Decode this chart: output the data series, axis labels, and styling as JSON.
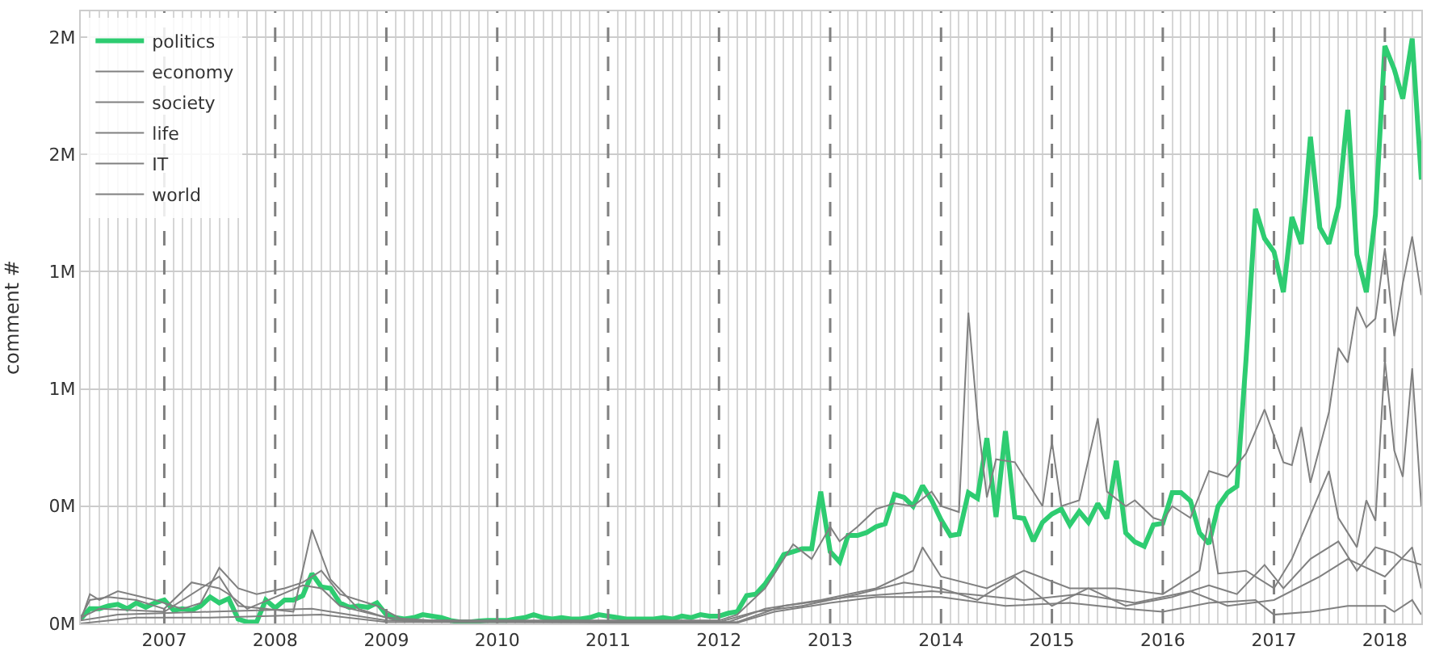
{
  "chart_data": {
    "type": "line",
    "ylabel": "comment #",
    "xlim": [
      "2006-04-01",
      "2018-05-01"
    ],
    "ylim": [
      0,
      2.088
    ],
    "xticks": [
      {
        "value": "2007-01-01",
        "label": "2007"
      },
      {
        "value": "2008-01-01",
        "label": "2008"
      },
      {
        "value": "2009-01-01",
        "label": "2009"
      },
      {
        "value": "2010-01-01",
        "label": "2010"
      },
      {
        "value": "2011-01-01",
        "label": "2011"
      },
      {
        "value": "2012-01-01",
        "label": "2012"
      },
      {
        "value": "2013-01-01",
        "label": "2013"
      },
      {
        "value": "2014-01-01",
        "label": "2014"
      },
      {
        "value": "2015-01-01",
        "label": "2015"
      },
      {
        "value": "2016-01-01",
        "label": "2016"
      },
      {
        "value": "2017-01-01",
        "label": "2017"
      },
      {
        "value": "2018-01-01",
        "label": "2018"
      }
    ],
    "yticks": [
      {
        "value": 0,
        "label": "0M"
      },
      {
        "value": 0.4,
        "label": "0M"
      },
      {
        "value": 0.8,
        "label": "1M"
      },
      {
        "value": 1.2,
        "label": "1M"
      },
      {
        "value": 1.6,
        "label": "2M"
      },
      {
        "value": 2.0,
        "label": "2M"
      }
    ],
    "grid": true,
    "legend": "top left",
    "marker": "none",
    "line_style": "solid",
    "ref_lines": [
      {
        "axis": "x",
        "value": "2007-01-01",
        "color": "#808080",
        "line_style": "dashed"
      },
      {
        "axis": "x",
        "value": "2008-01-01",
        "color": "#808080",
        "line_style": "dashed"
      },
      {
        "axis": "x",
        "value": "2009-01-01",
        "color": "#808080",
        "line_style": "dashed"
      },
      {
        "axis": "x",
        "value": "2010-01-01",
        "color": "#808080",
        "line_style": "dashed"
      },
      {
        "axis": "x",
        "value": "2011-01-01",
        "color": "#808080",
        "line_style": "dashed"
      },
      {
        "axis": "x",
        "value": "2012-01-01",
        "color": "#808080",
        "line_style": "dashed"
      },
      {
        "axis": "x",
        "value": "2013-01-01",
        "color": "#808080",
        "line_style": "dashed"
      },
      {
        "axis": "x",
        "value": "2014-01-01",
        "color": "#808080",
        "line_style": "dashed"
      },
      {
        "axis": "x",
        "value": "2015-01-01",
        "color": "#808080",
        "line_style": "dashed"
      },
      {
        "axis": "x",
        "value": "2016-01-01",
        "color": "#808080",
        "line_style": "dashed"
      },
      {
        "axis": "x",
        "value": "2017-01-01",
        "color": "#808080",
        "line_style": "dashed"
      },
      {
        "axis": "x",
        "value": "2018-01-01",
        "color": "#808080",
        "line_style": "dashed"
      }
    ],
    "series": [
      {
        "name": "politics",
        "color": "#2ecc71",
        "x": [
          "2006-04",
          "2006-05",
          "2006-06",
          "2006-07",
          "2006-08",
          "2006-09",
          "2006-10",
          "2006-11",
          "2006-12",
          "2007-01",
          "2007-02",
          "2007-03",
          "2007-04",
          "2007-05",
          "2007-06",
          "2007-07",
          "2007-08",
          "2007-09",
          "2007-10",
          "2007-11",
          "2007-12",
          "2008-01",
          "2008-02",
          "2008-03",
          "2008-04",
          "2008-05",
          "2008-06",
          "2008-07",
          "2008-08",
          "2008-09",
          "2008-10",
          "2008-11",
          "2008-12",
          "2009-01",
          "2009-02",
          "2009-03",
          "2009-04",
          "2009-05",
          "2009-06",
          "2009-07",
          "2009-08",
          "2009-09",
          "2009-10",
          "2009-11",
          "2009-12",
          "2010-01",
          "2010-02",
          "2010-03",
          "2010-04",
          "2010-05",
          "2010-06",
          "2010-07",
          "2010-08",
          "2010-09",
          "2010-10",
          "2010-11",
          "2010-12",
          "2011-01",
          "2011-02",
          "2011-03",
          "2011-04",
          "2011-05",
          "2011-06",
          "2011-07",
          "2011-08",
          "2011-09",
          "2011-10",
          "2011-11",
          "2011-12",
          "2012-01",
          "2012-02",
          "2012-03",
          "2012-04",
          "2012-05",
          "2012-06",
          "2012-07",
          "2012-08",
          "2012-09",
          "2012-10",
          "2012-11",
          "2012-12",
          "2013-01",
          "2013-02",
          "2013-03",
          "2013-04",
          "2013-05",
          "2013-06",
          "2013-07",
          "2013-08",
          "2013-09",
          "2013-10",
          "2013-11",
          "2013-12",
          "2014-01",
          "2014-02",
          "2014-03",
          "2014-04",
          "2014-05",
          "2014-06",
          "2014-07",
          "2014-08",
          "2014-09",
          "2014-10",
          "2014-11",
          "2014-12",
          "2015-01",
          "2015-02",
          "2015-03",
          "2015-04",
          "2015-05",
          "2015-06",
          "2015-07",
          "2015-08",
          "2015-09",
          "2015-10",
          "2015-11",
          "2015-12",
          "2016-01",
          "2016-02",
          "2016-03",
          "2016-04",
          "2016-05",
          "2016-06",
          "2016-07",
          "2016-08",
          "2016-09",
          "2016-10",
          "2016-11",
          "2016-12",
          "2017-01",
          "2017-02",
          "2017-03",
          "2017-04",
          "2017-05",
          "2017-06",
          "2017-07",
          "2017-08",
          "2017-09",
          "2017-10",
          "2017-11",
          "2017-12",
          "2018-01",
          "2018-02",
          "2018-03",
          "2018-04",
          "2018-05"
        ],
        "values": [
          0.016,
          0.05,
          0.05,
          0.06,
          0.065,
          0.05,
          0.07,
          0.055,
          0.07,
          0.08,
          0.045,
          0.05,
          0.045,
          0.06,
          0.09,
          0.07,
          0.085,
          0.015,
          0.005,
          0.005,
          0.08,
          0.053,
          0.08,
          0.08,
          0.095,
          0.17,
          0.125,
          0.12,
          0.07,
          0.055,
          0.06,
          0.055,
          0.07,
          0.03,
          0.02,
          0.015,
          0.02,
          0.03,
          0.025,
          0.02,
          0.01,
          0.005,
          0.005,
          0.008,
          0.01,
          0.01,
          0.01,
          0.015,
          0.02,
          0.03,
          0.02,
          0.015,
          0.02,
          0.015,
          0.015,
          0.02,
          0.03,
          0.025,
          0.02,
          0.015,
          0.015,
          0.015,
          0.015,
          0.02,
          0.015,
          0.025,
          0.02,
          0.03,
          0.025,
          0.025,
          0.035,
          0.04,
          0.095,
          0.1,
          0.135,
          0.18,
          0.235,
          0.245,
          0.255,
          0.255,
          0.45,
          0.245,
          0.21,
          0.3,
          0.3,
          0.31,
          0.33,
          0.34,
          0.44,
          0.43,
          0.4,
          0.47,
          0.42,
          0.354,
          0.3,
          0.305,
          0.446,
          0.427,
          0.632,
          0.363,
          0.656,
          0.363,
          0.358,
          0.281,
          0.345,
          0.373,
          0.39,
          0.336,
          0.382,
          0.345,
          0.409,
          0.358,
          0.555,
          0.309,
          0.278,
          0.263,
          0.336,
          0.342,
          0.446,
          0.446,
          0.418,
          0.309,
          0.272,
          0.4,
          0.446,
          0.468,
          0.9,
          1.414,
          1.313,
          1.268,
          1.13,
          1.386,
          1.295,
          1.66,
          1.35,
          1.295,
          1.423,
          1.752,
          1.258,
          1.13,
          1.395,
          1.97,
          1.89,
          1.79,
          1.995,
          1.514
        ]
      },
      {
        "name": "economy",
        "color": "#808080",
        "x": [
          "2006-04",
          "2006-05",
          "2006-07",
          "2006-10",
          "2007-01",
          "2007-04",
          "2007-07",
          "2007-08",
          "2007-10",
          "2008-01",
          "2008-04",
          "2008-06",
          "2008-08",
          "2009-01",
          "2009-06",
          "2012-01",
          "2012-03",
          "2012-06",
          "2012-09",
          "2012-11",
          "2013-01",
          "2013-02",
          "2013-04",
          "2013-06",
          "2013-08",
          "2013-10",
          "2013-12",
          "2014-01",
          "2014-03",
          "2014-04",
          "2014-05",
          "2014-06",
          "2014-07",
          "2014-09",
          "2014-10",
          "2014-12",
          "2015-01",
          "2015-02",
          "2015-04",
          "2015-06",
          "2015-07",
          "2015-09",
          "2015-10",
          "2015-12",
          "2016-01",
          "2016-02",
          "2016-04",
          "2016-06",
          "2016-08",
          "2016-10",
          "2016-12",
          "2017-02",
          "2017-03",
          "2017-04",
          "2017-05",
          "2017-07",
          "2017-08",
          "2017-09",
          "2017-10",
          "2017-11",
          "2017-12",
          "2018-01",
          "2018-02",
          "2018-03",
          "2018-04",
          "2018-05"
        ],
        "values": [
          0.02,
          0.08,
          0.09,
          0.08,
          0.05,
          0.14,
          0.12,
          0.1,
          0.05,
          0.09,
          0.13,
          0.12,
          0.06,
          0.02,
          0.01,
          0.01,
          0.03,
          0.12,
          0.27,
          0.22,
          0.33,
          0.28,
          0.33,
          0.39,
          0.41,
          0.4,
          0.45,
          0.4,
          0.38,
          1.06,
          0.7,
          0.43,
          0.56,
          0.55,
          0.5,
          0.4,
          0.62,
          0.4,
          0.42,
          0.7,
          0.45,
          0.4,
          0.42,
          0.36,
          0.35,
          0.4,
          0.36,
          0.52,
          0.5,
          0.58,
          0.73,
          0.55,
          0.54,
          0.67,
          0.48,
          0.72,
          0.94,
          0.89,
          1.08,
          1.01,
          1.04,
          1.28,
          0.98,
          1.16,
          1.32,
          1.12
        ]
      },
      {
        "name": "society",
        "color": "#808080",
        "x": [
          "2006-04",
          "2006-06",
          "2007-01",
          "2007-07",
          "2007-09",
          "2008-03",
          "2008-05",
          "2008-07",
          "2008-10",
          "2009-02",
          "2012-02",
          "2012-06",
          "2012-12",
          "2013-06",
          "2013-10",
          "2013-11",
          "2014-01",
          "2014-06",
          "2014-10",
          "2015-03",
          "2015-08",
          "2016-01",
          "2016-05",
          "2016-06",
          "2016-07",
          "2016-10",
          "2017-01",
          "2017-03",
          "2017-05",
          "2017-07",
          "2017-08",
          "2017-10",
          "2017-11",
          "2017-12",
          "2018-01",
          "2018-02",
          "2018-03",
          "2018-04",
          "2018-05"
        ],
        "values": [
          0.02,
          0.05,
          0.04,
          0.16,
          0.06,
          0.04,
          0.32,
          0.15,
          0.05,
          0.01,
          0.005,
          0.05,
          0.08,
          0.12,
          0.18,
          0.26,
          0.16,
          0.12,
          0.18,
          0.12,
          0.12,
          0.1,
          0.18,
          0.36,
          0.17,
          0.18,
          0.12,
          0.22,
          0.37,
          0.52,
          0.36,
          0.26,
          0.42,
          0.35,
          0.9,
          0.59,
          0.5,
          0.87,
          0.4
        ]
      },
      {
        "name": "life",
        "color": "#808080",
        "x": [
          "2006-04",
          "2006-05",
          "2006-06",
          "2006-08",
          "2006-12",
          "2007-03",
          "2007-05",
          "2007-07",
          "2007-09",
          "2007-11",
          "2008-02",
          "2008-04",
          "2008-06",
          "2008-08",
          "2008-12",
          "2009-03",
          "2012-01",
          "2012-05",
          "2012-10",
          "2013-04",
          "2013-09",
          "2014-01",
          "2014-05",
          "2014-09",
          "2015-01",
          "2015-05",
          "2015-09",
          "2016-02",
          "2016-06",
          "2016-09",
          "2016-12",
          "2017-02",
          "2017-05",
          "2017-08",
          "2017-10",
          "2017-12",
          "2018-02",
          "2018-03",
          "2018-05"
        ],
        "values": [
          0.01,
          0.1,
          0.08,
          0.11,
          0.08,
          0.05,
          0.07,
          0.19,
          0.12,
          0.1,
          0.12,
          0.14,
          0.18,
          0.1,
          0.06,
          0.01,
          0.005,
          0.04,
          0.06,
          0.1,
          0.14,
          0.12,
          0.08,
          0.16,
          0.06,
          0.12,
          0.06,
          0.09,
          0.13,
          0.1,
          0.2,
          0.12,
          0.22,
          0.28,
          0.18,
          0.26,
          0.24,
          0.22,
          0.2
        ]
      },
      {
        "name": "IT",
        "color": "#808080",
        "x": [
          "2006-04",
          "2006-08",
          "2007-06",
          "2008-05",
          "2009-01",
          "2012-03",
          "2012-08",
          "2013-03",
          "2013-12",
          "2014-04",
          "2014-10",
          "2015-04",
          "2015-10",
          "2016-04",
          "2016-08",
          "2017-01",
          "2017-06",
          "2017-09",
          "2018-01",
          "2018-04",
          "2018-05"
        ],
        "values": [
          0.01,
          0.03,
          0.04,
          0.05,
          0.01,
          0.005,
          0.06,
          0.09,
          0.11,
          0.1,
          0.08,
          0.1,
          0.07,
          0.11,
          0.06,
          0.08,
          0.16,
          0.22,
          0.16,
          0.26,
          0.12
        ]
      },
      {
        "name": "world",
        "color": "#808080",
        "x": [
          "2006-04",
          "2006-10",
          "2007-06",
          "2008-06",
          "2009-01",
          "2012-03",
          "2012-07",
          "2013-01",
          "2013-06",
          "2014-01",
          "2014-08",
          "2015-03",
          "2015-09",
          "2016-01",
          "2016-06",
          "2016-11",
          "2017-01",
          "2017-05",
          "2017-09",
          "2018-01",
          "2018-02",
          "2018-04",
          "2018-05"
        ],
        "values": [
          0.0,
          0.02,
          0.02,
          0.03,
          0.005,
          0.002,
          0.04,
          0.07,
          0.09,
          0.09,
          0.06,
          0.07,
          0.05,
          0.04,
          0.07,
          0.08,
          0.03,
          0.04,
          0.06,
          0.06,
          0.04,
          0.08,
          0.03
        ]
      }
    ]
  }
}
